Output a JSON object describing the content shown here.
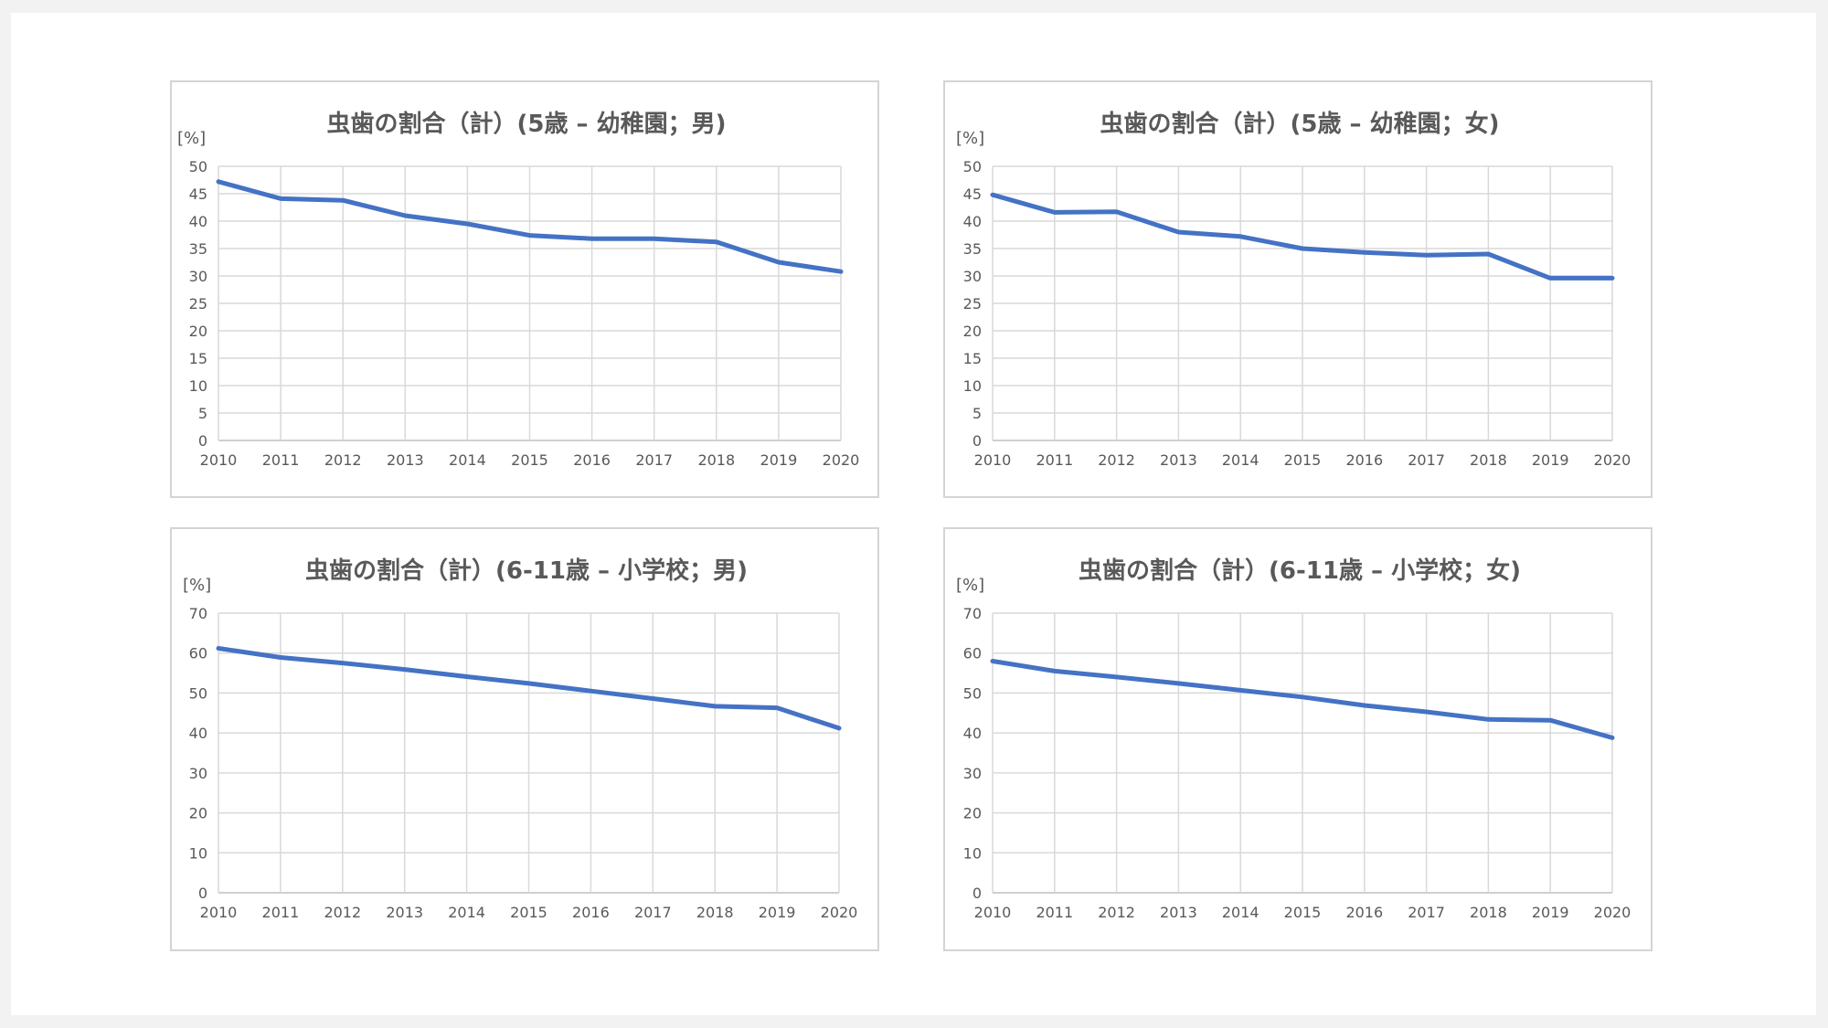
{
  "colors": {
    "series": "#4472c4",
    "grid": "#d9d9d9",
    "text": "#595959"
  },
  "chart_data": [
    {
      "type": "line",
      "title": "虫歯の割合（計）(5歳 – 幼稚園；男)",
      "ylabel": "[%]",
      "xlabel": "",
      "grid": true,
      "categories": [
        "2010",
        "2011",
        "2012",
        "2013",
        "2014",
        "2015",
        "2016",
        "2017",
        "2018",
        "2019",
        "2020"
      ],
      "yticks": [
        "0",
        "5",
        "10",
        "15",
        "20",
        "25",
        "30",
        "35",
        "40",
        "45",
        "50"
      ],
      "ylim": [
        0,
        50
      ],
      "series": [
        {
          "values": [
            47.2,
            44.1,
            43.8,
            41.0,
            39.5,
            37.4,
            36.8,
            36.8,
            36.2,
            32.5,
            30.8
          ]
        }
      ]
    },
    {
      "type": "line",
      "title": "虫歯の割合（計）(5歳 – 幼稚園；女)",
      "ylabel": "[%]",
      "xlabel": "",
      "grid": true,
      "categories": [
        "2010",
        "2011",
        "2012",
        "2013",
        "2014",
        "2015",
        "2016",
        "2017",
        "2018",
        "2019",
        "2020"
      ],
      "yticks": [
        "0",
        "5",
        "10",
        "15",
        "20",
        "25",
        "30",
        "35",
        "40",
        "45",
        "50"
      ],
      "ylim": [
        0,
        50
      ],
      "series": [
        {
          "values": [
            44.8,
            41.6,
            41.7,
            38.0,
            37.2,
            35.0,
            34.3,
            33.8,
            34.0,
            29.6,
            29.6
          ]
        }
      ]
    },
    {
      "type": "line",
      "title": "虫歯の割合（計）(6-11歳 – 小学校；男)",
      "ylabel": "[%]",
      "xlabel": "",
      "grid": true,
      "categories": [
        "2010",
        "2011",
        "2012",
        "2013",
        "2014",
        "2015",
        "2016",
        "2017",
        "2018",
        "2019",
        "2020"
      ],
      "yticks": [
        "0",
        "10",
        "20",
        "30",
        "40",
        "50",
        "60",
        "70"
      ],
      "ylim": [
        0,
        70
      ],
      "series": [
        {
          "values": [
            61.2,
            58.9,
            57.5,
            55.9,
            54.1,
            52.4,
            50.5,
            48.6,
            46.7,
            46.3,
            41.2
          ]
        }
      ]
    },
    {
      "type": "line",
      "title": "虫歯の割合（計）(6-11歳 – 小学校；女)",
      "ylabel": "[%]",
      "xlabel": "",
      "grid": true,
      "categories": [
        "2010",
        "2011",
        "2012",
        "2013",
        "2014",
        "2015",
        "2016",
        "2017",
        "2018",
        "2019",
        "2020"
      ],
      "yticks": [
        "0",
        "10",
        "20",
        "30",
        "40",
        "50",
        "60",
        "70"
      ],
      "ylim": [
        0,
        70
      ],
      "series": [
        {
          "values": [
            58.0,
            55.5,
            54.0,
            52.4,
            50.7,
            49.0,
            46.9,
            45.3,
            43.4,
            43.2,
            38.8
          ]
        }
      ]
    }
  ]
}
